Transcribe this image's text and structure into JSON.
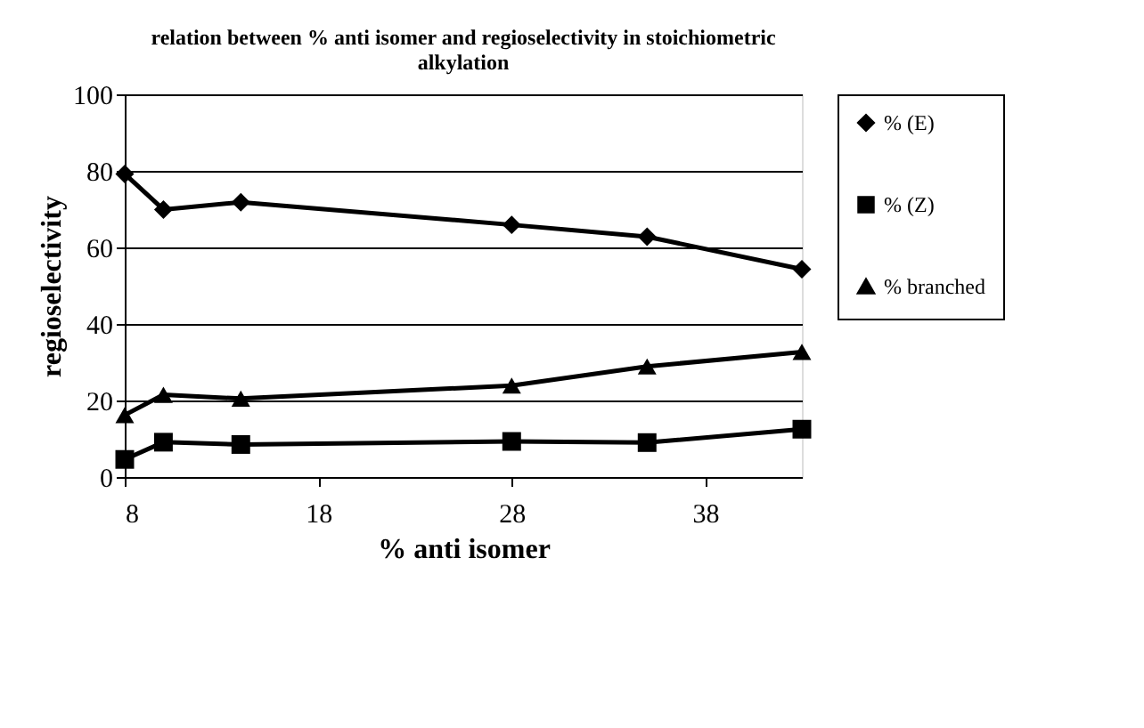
{
  "chart_data": {
    "type": "line",
    "title": [
      "relation between % anti isomer and regioselectivity in stoichiometric",
      "alkylation"
    ],
    "xlabel": "% anti isomer",
    "ylabel": "regioselectivity",
    "x": [
      8,
      10,
      14,
      28,
      35,
      43
    ],
    "series": [
      {
        "name": "% (E)",
        "color": "#000000",
        "marker": "diamond",
        "values": [
          79.2,
          69.9,
          71.8,
          65.9,
          62.8,
          54.3
        ]
      },
      {
        "name": "% (Z)",
        "color": "#000000",
        "marker": "square",
        "values": [
          4.6,
          9.1,
          8.5,
          9.3,
          9.0,
          12.5
        ]
      },
      {
        "name": "% branched",
        "color": "#000000",
        "marker": "triangle",
        "values": [
          16.2,
          21.5,
          20.5,
          23.9,
          28.9,
          32.7
        ]
      }
    ],
    "xlim": [
      8,
      43
    ],
    "xticks": [
      8,
      18,
      28,
      38
    ],
    "ylim": [
      0,
      100
    ],
    "yticks": [
      0,
      20,
      40,
      60,
      80,
      100
    ],
    "grid": "y",
    "legend": "right",
    "line_style": "solid"
  }
}
